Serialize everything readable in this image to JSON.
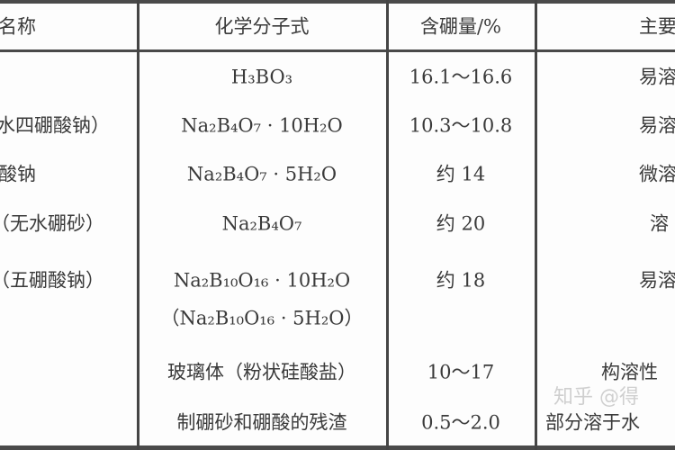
{
  "table": {
    "headers": [
      "名称",
      "化学分子式",
      "含硼量/%",
      "主要"
    ],
    "rows": [
      {
        "name": "",
        "formula": "H₃BO₃",
        "boron": "16.1～16.6",
        "main": "易溶"
      },
      {
        "name": "水四硼酸钠）",
        "formula": "Na₂B₄O₇ · 10H₂O",
        "boron": "10.3～10.8",
        "main": "易溶"
      },
      {
        "name": "酸钠",
        "formula": "Na₂B₄O₇ · 5H₂O",
        "boron": "约 14",
        "main": "微溶"
      },
      {
        "name": "（无水硼砂）",
        "formula": "Na₂B₄O₇",
        "boron": "约 20",
        "main": "溶"
      },
      {
        "name": "（五硼酸钠）",
        "formula": "Na₂B₁₀O₁₆ · 10H₂O",
        "formula2": "（Na₂B₁₀O₁₆ · 5H₂O）",
        "boron": "约 18",
        "main": "易溶"
      },
      {
        "name": "",
        "formula": "玻璃体（粉状硅酸盐）",
        "boron": "10～17",
        "main": "构溶性"
      },
      {
        "name": "",
        "formula": "制硼砂和硼酸的残渣",
        "boron": "0.5～2.0",
        "main": "部分溶于水"
      }
    ]
  },
  "watermark": "知乎 @得"
}
